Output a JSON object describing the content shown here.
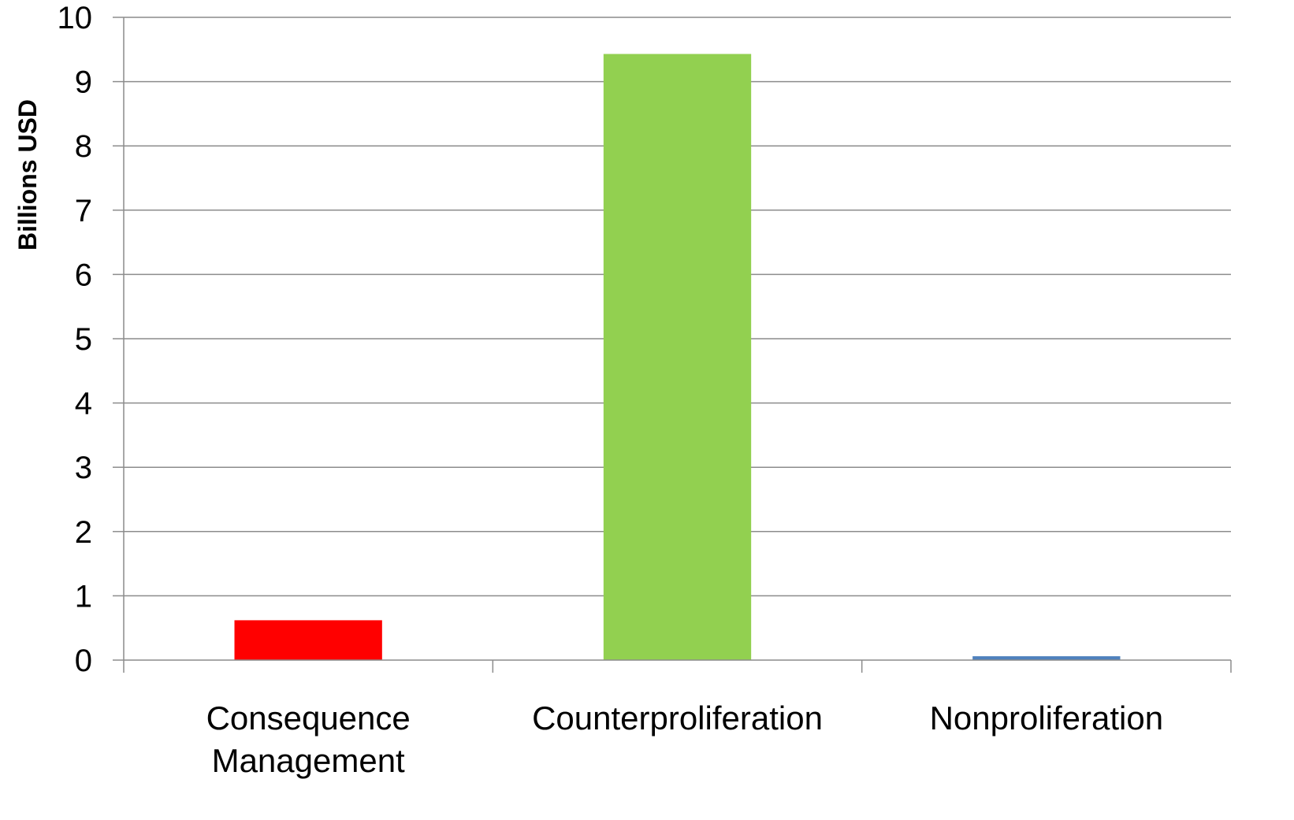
{
  "chart_data": {
    "type": "bar",
    "title": "",
    "xlabel": "",
    "ylabel": "Billions USD",
    "ylim": [
      0,
      10
    ],
    "yticks": [
      "0",
      "1",
      "2",
      "3",
      "4",
      "5",
      "6",
      "7",
      "8",
      "9",
      "10"
    ],
    "grid": true,
    "legend": "none",
    "categories": [
      [
        "Consequence",
        "Management"
      ],
      [
        "Counterproliferation"
      ],
      [
        "Nonproliferation"
      ]
    ],
    "values": [
      0.62,
      9.43,
      0.06
    ],
    "colors": [
      "#ff0000",
      "#92d050",
      "#4f81bd"
    ]
  }
}
